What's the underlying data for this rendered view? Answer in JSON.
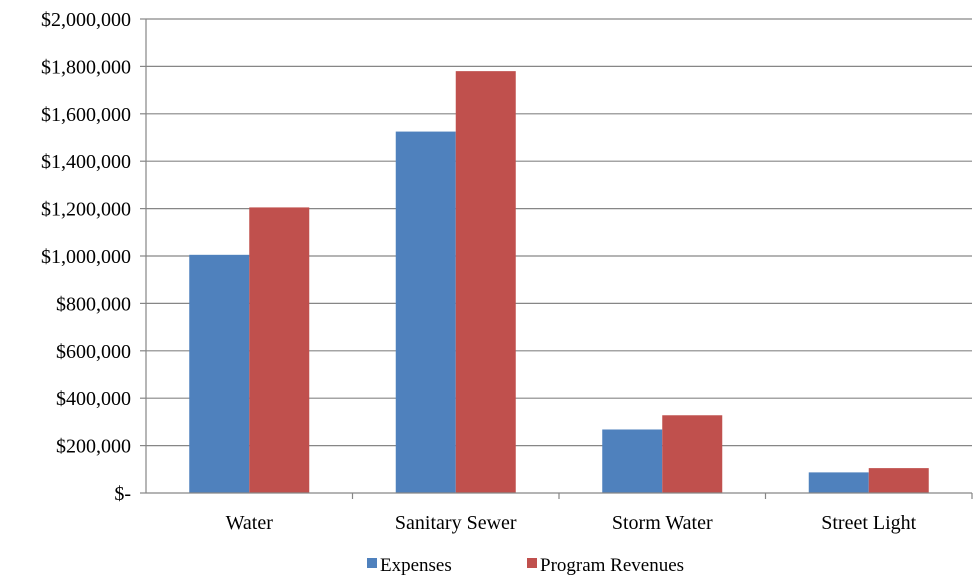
{
  "chart_data": {
    "type": "bar",
    "categories": [
      "Water",
      "Sanitary Sewer",
      "Storm Water",
      "Street Light"
    ],
    "series": [
      {
        "name": "Expenses",
        "color": "#4F81BD",
        "values": [
          1005000,
          1525000,
          268000,
          87000
        ]
      },
      {
        "name": "Program Revenues",
        "color": "#C0504D",
        "values": [
          1205000,
          1780000,
          328000,
          105000
        ]
      }
    ],
    "ylim": [
      0,
      2000000
    ],
    "y_ticks": [
      0,
      200000,
      400000,
      600000,
      800000,
      1000000,
      1200000,
      1400000,
      1600000,
      1800000,
      2000000
    ],
    "y_tick_labels": [
      "$-",
      "$200,000",
      "$400,000",
      "$600,000",
      "$800,000",
      "$1,000,000",
      "$1,200,000",
      "$1,400,000",
      "$1,600,000",
      "$1,800,000",
      "$2,000,000"
    ],
    "grid": true,
    "legend_position": "bottom",
    "title": "",
    "xlabel": "",
    "ylabel": ""
  }
}
